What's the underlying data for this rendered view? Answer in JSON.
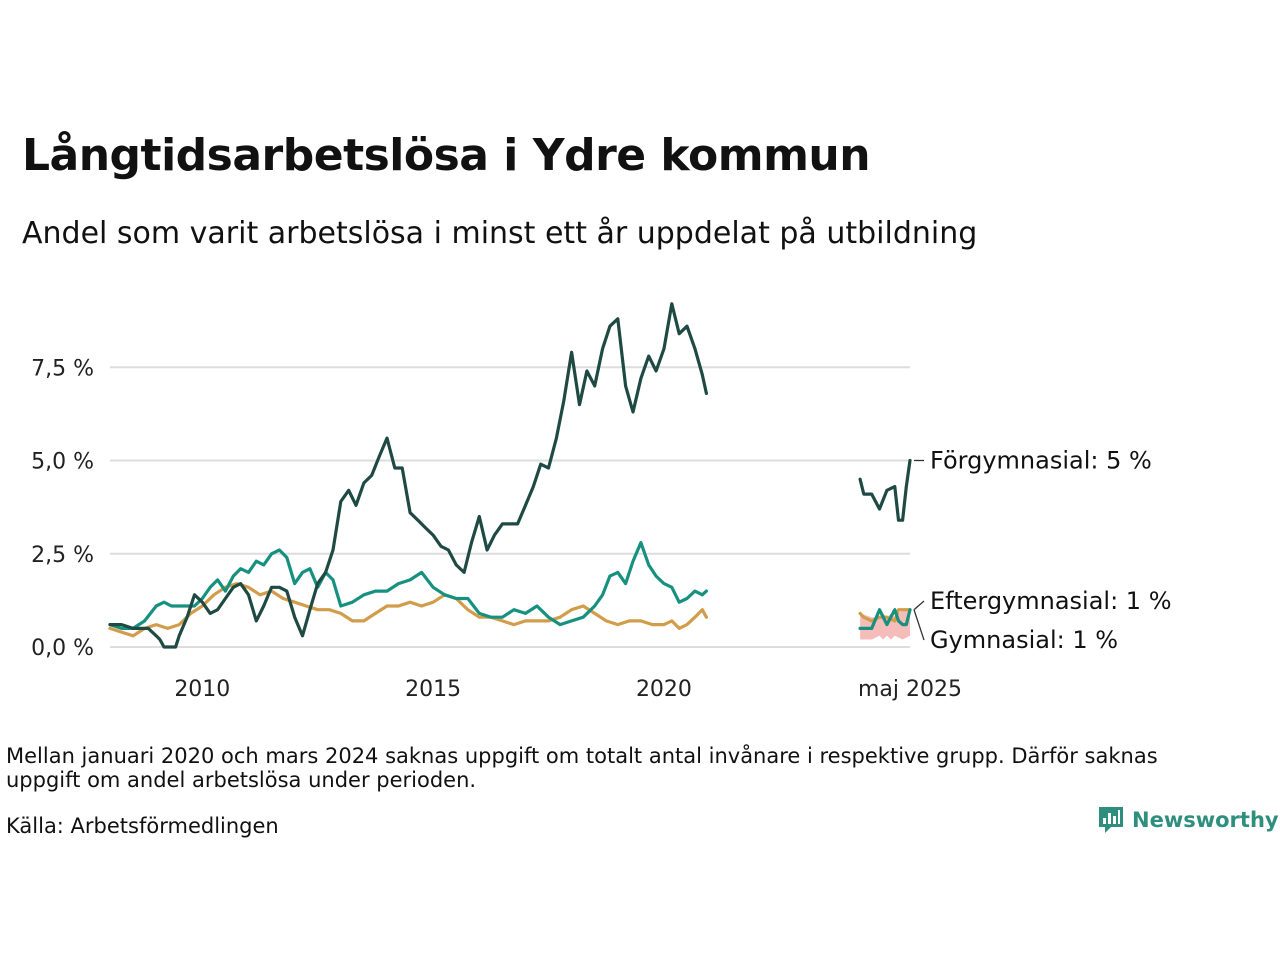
{
  "title": "Långtidsarbetslösa i Ydre kommun",
  "subtitle": "Andel som varit arbetslösa i minst ett år uppdelat på utbildning",
  "note": "Mellan januari 2020 och mars 2024 saknas uppgift om totalt antal invånare i respektive grupp. Därför saknas uppgift om andel arbetslösa under perioden.",
  "source": "Källa: Arbetsförmedlingen",
  "brand": "Newsworthy",
  "colors": {
    "forgymnasial": "#1f4a44",
    "eftergymnasial": "#17917f",
    "gymnasial": "#d19d4a",
    "band": "#f3b1ad",
    "grid": "#dddddd"
  },
  "chart_data": {
    "type": "line",
    "y_tick_labels": [
      "0,0 %",
      "2,5 %",
      "5,0 %",
      "7,5 %"
    ],
    "y_ticks": [
      0,
      2.5,
      5.0,
      7.5
    ],
    "ylim": [
      0,
      9.5
    ],
    "x_tick_labels": [
      "2010",
      "2015",
      "2020",
      "maj 2025"
    ],
    "x_ticks": [
      2010,
      2015,
      2020,
      2025.33
    ],
    "xlim": [
      2008.0,
      2025.42
    ],
    "end_labels": [
      "Förgymnasial: 5 %",
      "Eftergymnasial: 1 %",
      "Gymnasial: 1 %"
    ],
    "series": [
      {
        "name": "Förgymnasial",
        "x": [
          2008.0,
          2008.25,
          2008.5,
          2008.67,
          2008.83,
          2009.0,
          2009.08,
          2009.17,
          2009.25,
          2009.33,
          2009.42,
          2009.5,
          2009.67,
          2009.83,
          2010.0,
          2010.17,
          2010.33,
          2010.5,
          2010.67,
          2010.83,
          2011.0,
          2011.17,
          2011.33,
          2011.5,
          2011.67,
          2011.83,
          2012.0,
          2012.17,
          2012.33,
          2012.5,
          2012.67,
          2012.83,
          2013.0,
          2013.17,
          2013.33,
          2013.5,
          2013.67,
          2013.83,
          2014.0,
          2014.17,
          2014.33,
          2014.5,
          2014.67,
          2014.83,
          2015.0,
          2015.17,
          2015.33,
          2015.5,
          2015.67,
          2015.83,
          2016.0,
          2016.17,
          2016.33,
          2016.5,
          2016.67,
          2016.83,
          2017.0,
          2017.17,
          2017.33,
          2017.5,
          2017.67,
          2017.83,
          2018.0,
          2018.17,
          2018.33,
          2018.5,
          2018.67,
          2018.83,
          2019.0,
          2019.17,
          2019.33,
          2019.5,
          2019.67,
          2019.83,
          2020.0,
          2020.17,
          2020.33,
          2020.5,
          2020.67,
          2020.83,
          2020.92
        ],
        "y": [
          0.6,
          0.6,
          0.5,
          0.5,
          0.5,
          0.3,
          0.2,
          0.0,
          0.0,
          0.0,
          0.0,
          0.3,
          0.8,
          1.4,
          1.2,
          0.9,
          1.0,
          1.3,
          1.6,
          1.7,
          1.4,
          0.7,
          1.1,
          1.6,
          1.6,
          1.5,
          0.8,
          0.3,
          1.0,
          1.7,
          2.0,
          2.6,
          3.9,
          4.2,
          3.8,
          4.4,
          4.6,
          5.1,
          5.6,
          4.8,
          4.8,
          3.6,
          3.4,
          3.2,
          3.0,
          2.7,
          2.6,
          2.2,
          2.0,
          2.8,
          3.5,
          2.6,
          3.0,
          3.3,
          3.3,
          3.3,
          3.8,
          4.3,
          4.9,
          4.8,
          5.6,
          6.6,
          7.9,
          6.5,
          7.4,
          7.0,
          8.0,
          8.6,
          8.8,
          7.0,
          6.3,
          7.2,
          7.8,
          7.4,
          8.0,
          9.2,
          8.4,
          8.6,
          8.0,
          7.3,
          6.8
        ],
        "x2": [
          2024.25,
          2024.33,
          2024.5,
          2024.67,
          2024.83,
          2025.0,
          2025.08,
          2025.17,
          2025.25,
          2025.33
        ],
        "y2": [
          4.5,
          4.1,
          4.1,
          3.7,
          4.2,
          4.3,
          3.4,
          3.4,
          4.3,
          5.0
        ]
      },
      {
        "name": "Eftergymnasial",
        "x": [
          2008.0,
          2008.25,
          2008.5,
          2008.75,
          2009.0,
          2009.17,
          2009.33,
          2009.5,
          2009.67,
          2009.83,
          2010.0,
          2010.17,
          2010.33,
          2010.5,
          2010.67,
          2010.83,
          2011.0,
          2011.17,
          2011.33,
          2011.5,
          2011.67,
          2011.83,
          2012.0,
          2012.17,
          2012.33,
          2012.5,
          2012.67,
          2012.83,
          2013.0,
          2013.25,
          2013.5,
          2013.75,
          2014.0,
          2014.25,
          2014.5,
          2014.75,
          2015.0,
          2015.25,
          2015.5,
          2015.75,
          2016.0,
          2016.25,
          2016.5,
          2016.75,
          2017.0,
          2017.25,
          2017.5,
          2017.75,
          2018.0,
          2018.25,
          2018.5,
          2018.67,
          2018.83,
          2019.0,
          2019.17,
          2019.33,
          2019.5,
          2019.67,
          2019.83,
          2020.0,
          2020.17,
          2020.33,
          2020.5,
          2020.67,
          2020.83,
          2020.92
        ],
        "y": [
          0.6,
          0.5,
          0.5,
          0.7,
          1.1,
          1.2,
          1.1,
          1.1,
          1.1,
          1.1,
          1.3,
          1.6,
          1.8,
          1.5,
          1.9,
          2.1,
          2.0,
          2.3,
          2.2,
          2.5,
          2.6,
          2.4,
          1.7,
          2.0,
          2.1,
          1.6,
          2.0,
          1.8,
          1.1,
          1.2,
          1.4,
          1.5,
          1.5,
          1.7,
          1.8,
          2.0,
          1.6,
          1.4,
          1.3,
          1.3,
          0.9,
          0.8,
          0.8,
          1.0,
          0.9,
          1.1,
          0.8,
          0.6,
          0.7,
          0.8,
          1.1,
          1.4,
          1.9,
          2.0,
          1.7,
          2.3,
          2.8,
          2.2,
          1.9,
          1.7,
          1.6,
          1.2,
          1.3,
          1.5,
          1.4,
          1.5
        ],
        "x2": [
          2024.25,
          2024.33,
          2024.5,
          2024.67,
          2024.83,
          2025.0,
          2025.08,
          2025.17,
          2025.25,
          2025.33
        ],
        "y2": [
          0.5,
          0.5,
          0.5,
          1.0,
          0.6,
          1.0,
          0.7,
          0.6,
          0.6,
          1.0
        ]
      },
      {
        "name": "Gymnasial",
        "x": [
          2008.0,
          2008.25,
          2008.5,
          2008.75,
          2009.0,
          2009.25,
          2009.5,
          2009.75,
          2010.0,
          2010.25,
          2010.5,
          2010.75,
          2011.0,
          2011.25,
          2011.5,
          2011.75,
          2012.0,
          2012.25,
          2012.5,
          2012.75,
          2013.0,
          2013.25,
          2013.5,
          2013.75,
          2014.0,
          2014.25,
          2014.5,
          2014.75,
          2015.0,
          2015.25,
          2015.5,
          2015.75,
          2016.0,
          2016.25,
          2016.5,
          2016.75,
          2017.0,
          2017.25,
          2017.5,
          2017.75,
          2018.0,
          2018.25,
          2018.5,
          2018.75,
          2019.0,
          2019.25,
          2019.5,
          2019.75,
          2020.0,
          2020.17,
          2020.33,
          2020.5,
          2020.67,
          2020.83,
          2020.92
        ],
        "y": [
          0.5,
          0.4,
          0.3,
          0.5,
          0.6,
          0.5,
          0.6,
          0.9,
          1.1,
          1.4,
          1.6,
          1.7,
          1.6,
          1.4,
          1.5,
          1.3,
          1.2,
          1.1,
          1.0,
          1.0,
          0.9,
          0.7,
          0.7,
          0.9,
          1.1,
          1.1,
          1.2,
          1.1,
          1.2,
          1.4,
          1.3,
          1.0,
          0.8,
          0.8,
          0.7,
          0.6,
          0.7,
          0.7,
          0.7,
          0.8,
          1.0,
          1.1,
          0.9,
          0.7,
          0.6,
          0.7,
          0.7,
          0.6,
          0.6,
          0.7,
          0.5,
          0.6,
          0.8,
          1.0,
          0.8
        ],
        "x2": [
          2024.25,
          2024.33,
          2024.5,
          2024.67,
          2024.83,
          2025.0,
          2025.08,
          2025.17,
          2025.25,
          2025.33
        ],
        "y2": [
          0.9,
          0.8,
          0.7,
          0.8,
          0.8,
          0.7,
          1.0,
          1.0,
          1.0,
          1.0
        ]
      }
    ],
    "band": {
      "x": [
        2024.25,
        2024.5,
        2024.67,
        2024.75,
        2024.83,
        2024.92,
        2025.0,
        2025.17,
        2025.33
      ],
      "high": [
        0.9,
        0.8,
        0.8,
        0.9,
        0.8,
        0.9,
        0.8,
        1.0,
        1.0
      ],
      "low": [
        0.2,
        0.2,
        0.3,
        0.2,
        0.3,
        0.2,
        0.3,
        0.2,
        0.3
      ]
    }
  }
}
